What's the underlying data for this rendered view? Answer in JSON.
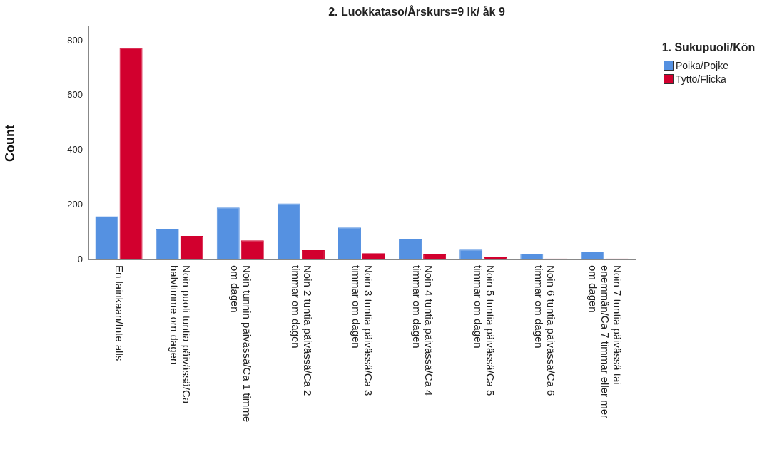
{
  "chart_data": {
    "type": "bar",
    "title": "2. Luokkataso/Årskurs=9 lk/ åk 9",
    "ylabel": "Count",
    "legend_title": "1. Sukupuoli/Kön",
    "categories": [
      "En lainkaan/Inte alls",
      "Noin puoli tuntia päivässä/Ca halvtimme om dagen",
      "Noin tunnin päivässä/Ca 1 timme om dagen",
      "Noin 2 tuntia päivässä/Ca 2 timmar om dagen",
      "Noin 3 tuntia päivässä/Ca 3 timmar om dagen",
      "Noin 4 tuntia päivässä/Ca 4 timmar om dagen",
      "Noin 5 tuntia päivässä/Ca 5 timmar om dagen",
      "Noin 6 tuntia päivässä/Ca 6 timmar om dagen",
      "Noin 7 tuntia päivässä tai enemmän/Ca 7 timmar eller mer om dagen"
    ],
    "series": [
      {
        "name": "Poika/Pojke",
        "color": "#5591e1",
        "values": [
          158,
          112,
          190,
          205,
          117,
          73,
          36,
          21,
          29
        ]
      },
      {
        "name": "Tyttö/Flicka",
        "color": "#d2002e",
        "values": [
          774,
          86,
          70,
          34,
          23,
          18,
          8,
          3,
          3
        ]
      }
    ],
    "ylim": [
      0,
      850
    ],
    "yticks": [
      0,
      200,
      400,
      600,
      800
    ],
    "grid": false,
    "legend": "top right"
  }
}
